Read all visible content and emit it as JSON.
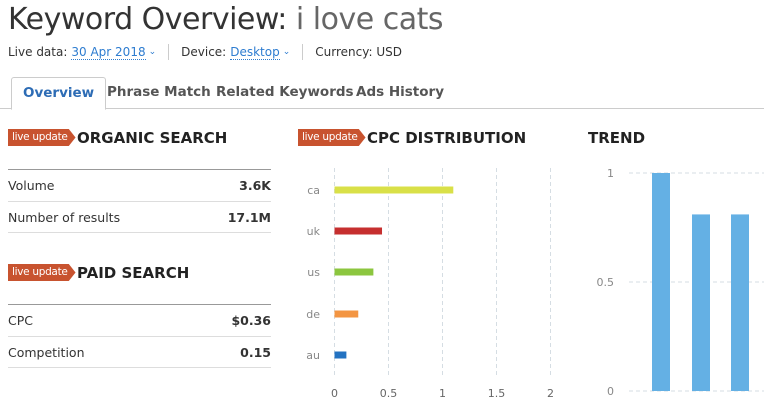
{
  "header": {
    "title_prefix": "Keyword Overview: ",
    "keyword": "i love cats",
    "live_data_label": "Live data:",
    "live_data_value": "30 Apr 2018",
    "device_label": "Device:",
    "device_value": "Desktop",
    "currency": "Currency: USD"
  },
  "tabs": [
    {
      "label": "Overview",
      "active": true
    },
    {
      "label": "Phrase Match"
    },
    {
      "label": "Related Keywords"
    },
    {
      "label": "Ads History"
    }
  ],
  "badge": "live update",
  "organic": {
    "title": "ORGANIC SEARCH",
    "rows": [
      {
        "label": "Volume",
        "value": "3.6K"
      },
      {
        "label": "Number of results",
        "value": "17.1M"
      }
    ]
  },
  "paid": {
    "title": "PAID SEARCH",
    "rows": [
      {
        "label": "CPC",
        "value": "$0.36"
      },
      {
        "label": "Competition",
        "value": "0.15"
      }
    ]
  },
  "colors": {
    "badge": "#c8532f",
    "link": "#2d7cd0",
    "trend_bar": "#64b0e4"
  },
  "chart_data": [
    {
      "type": "bar",
      "orientation": "horizontal",
      "title": "CPC DISTRIBUTION",
      "categories": [
        "ca",
        "uk",
        "us",
        "de",
        "au"
      ],
      "values": [
        1.1,
        0.44,
        0.36,
        0.22,
        0.11
      ],
      "colors": [
        "#d9e048",
        "#c62f2f",
        "#8cc63f",
        "#f39542",
        "#2372c1"
      ],
      "xlim": [
        0,
        2
      ],
      "xticks": [
        "0",
        "0.5",
        "1",
        "1.5",
        "2"
      ],
      "grid": true
    },
    {
      "type": "bar",
      "title": "TREND",
      "values": [
        1,
        0.81,
        0.81
      ],
      "ylim": [
        0,
        1
      ],
      "yticks": [
        "0",
        "0.5",
        "1"
      ],
      "grid": true
    }
  ]
}
